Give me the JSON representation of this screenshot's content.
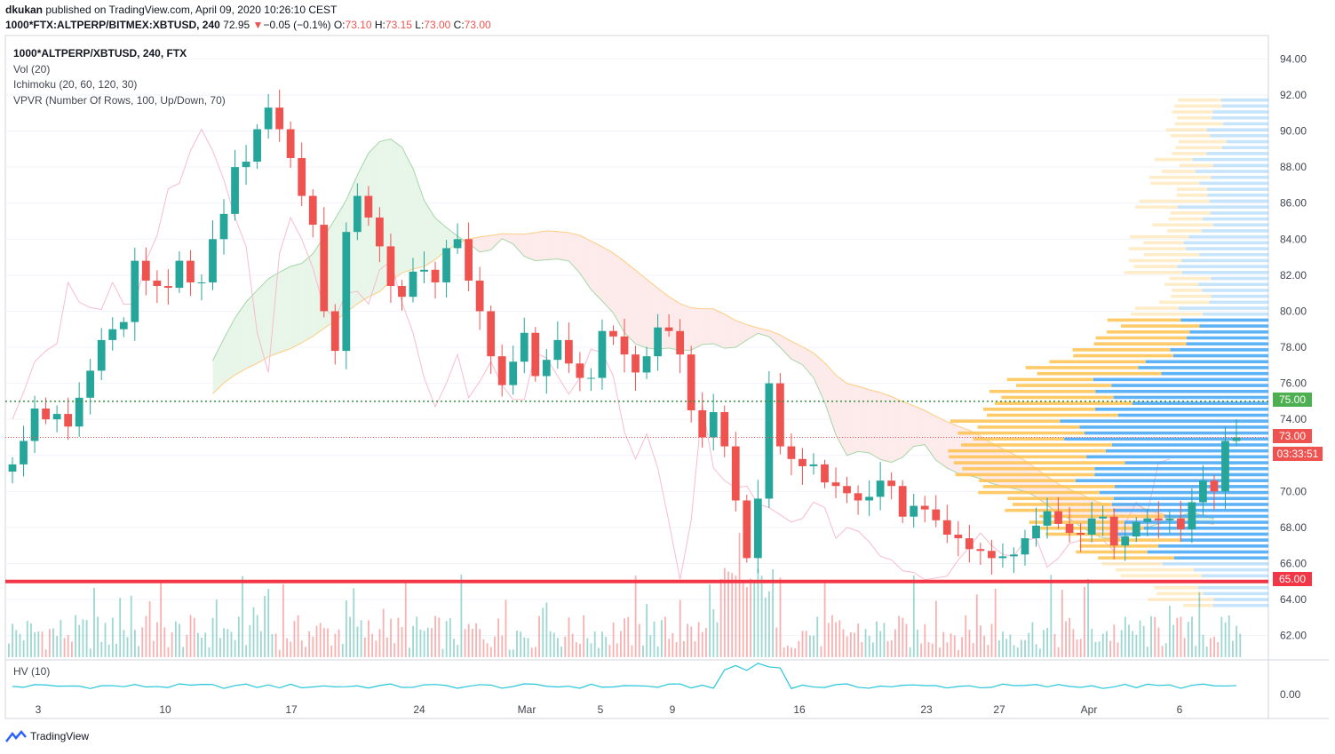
{
  "header": {
    "author": "dkukan",
    "published_text": "published on TradingView.com, April 09, 2020 10:26:10 CEST",
    "symbol_line": "1000*FTX:ALTPERP/BITMEX:XBTUSD, 240",
    "last": "72.95",
    "change_arrow": "▼",
    "change": "−0.05 (−0.1%)",
    "o_label": "O:",
    "o": "73.10",
    "h_label": "H:",
    "h": "73.15",
    "l_label": "L:",
    "l": "73.00",
    "c_label": "C:",
    "c": "73.00"
  },
  "legend": {
    "symbol": "1000*ALTPERP/XBTUSD, 240, FTX",
    "vol": "Vol (20)",
    "ichimoku": "Ichimoku (20, 60, 120, 30)",
    "vpvr": "VPVR (Number Of Rows, 100, Up/Down, 70)",
    "hv": "HV (10)"
  },
  "price_labels": {
    "hline_green": "75.00",
    "current": "73.00",
    "countdown": "03:33:51",
    "hline_red": "65.00",
    "hv_zero": "0.00"
  },
  "brand": "TradingView",
  "colors": {
    "up": "#26a69a",
    "down": "#ef5350",
    "green_line": "#388e3c",
    "green_label": "#4caf50",
    "red_line": "#f23645",
    "cloud_bull": "#e8f5e9",
    "cloud_bear": "#fdeaea",
    "vpvr_blue": "#42a5f5",
    "vpvr_orange": "#ffc14d",
    "hv_line": "#26c6da"
  },
  "chart_data": {
    "type": "candlestick",
    "timeframe": "240",
    "y_axis": {
      "ticks": [
        62,
        64,
        66,
        68,
        70,
        72,
        74,
        76,
        78,
        80,
        82,
        84,
        86,
        88,
        90,
        92,
        94
      ],
      "min": 60.8,
      "max": 95.3
    },
    "x_ticks": [
      "3",
      "10",
      "17",
      "24",
      "Mar",
      "5",
      "9",
      "16",
      "23",
      "27",
      "Apr",
      "6"
    ],
    "horizontal_lines": [
      {
        "value": 75.0,
        "color": "#388e3c",
        "style": "dotted"
      },
      {
        "value": 65.0,
        "color": "#f23645",
        "style": "solid"
      }
    ],
    "current_price": 73.0,
    "closes": [
      71.5,
      72.8,
      74.6,
      74.0,
      74.3,
      73.6,
      75.2,
      76.7,
      78.4,
      79.0,
      79.4,
      82.8,
      81.7,
      81.4,
      81.3,
      82.8,
      81.6,
      81.6,
      84.0,
      85.4,
      88.0,
      88.3,
      90.1,
      91.3,
      90.1,
      88.5,
      86.4,
      84.8,
      80.0,
      77.8,
      84.4,
      86.4,
      85.2,
      83.6,
      81.4,
      80.8,
      82.2,
      82.3,
      81.6,
      83.5,
      84.0,
      81.7,
      80.0,
      77.5,
      75.9,
      77.2,
      78.8,
      76.4,
      77.3,
      78.4,
      77.1,
      76.3,
      76.3,
      78.9,
      78.6,
      77.6,
      76.6,
      77.5,
      79.1,
      78.9,
      77.6,
      74.5,
      73.0,
      74.4,
      72.5,
      69.5,
      66.3,
      69.6,
      76.0,
      72.5,
      71.8,
      71.4,
      71.5,
      70.5,
      70.3,
      69.9,
      69.5,
      69.7,
      70.6,
      70.3,
      68.6,
      69.2,
      69.0,
      68.4,
      67.6,
      67.4,
      66.8,
      66.7,
      66.3,
      66.4,
      66.5,
      67.4,
      68.1,
      68.9,
      68.2,
      67.7,
      67.6,
      68.5,
      68.6,
      67.0,
      67.5,
      68.3,
      68.5,
      68.4,
      68.5,
      67.9,
      69.4,
      70.6,
      70.0,
      72.8,
      73.0
    ],
    "volume_shape": "per-bar volume histogram, spikes around Mar 12",
    "hv_shape": "historical volatility line with a spike around Mar 12",
    "vpvr": "volume profile by price, Up/Down split, heaviest around 68-78"
  }
}
